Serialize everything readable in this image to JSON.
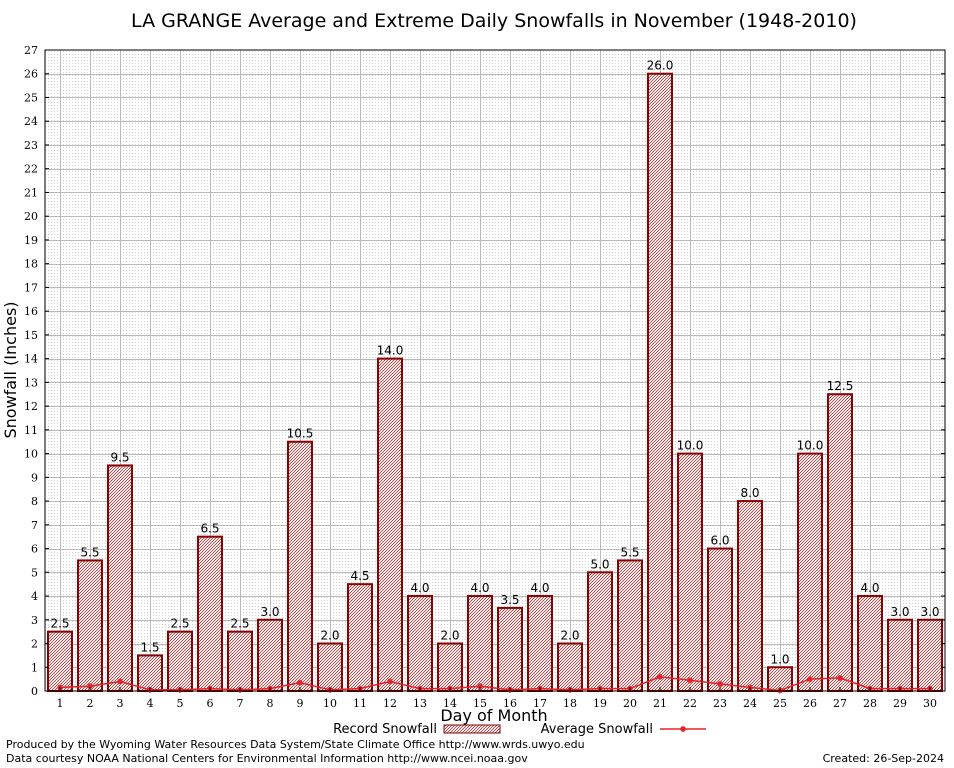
{
  "chart_data": {
    "type": "bar",
    "title": "LA GRANGE Average and Extreme Daily Snowfalls in November (1948-2010)",
    "xlabel": "Day of Month",
    "ylabel": "Snowfall (Inches)",
    "ylim": [
      0,
      27
    ],
    "yticks": [
      0,
      1,
      2,
      3,
      4,
      5,
      6,
      7,
      8,
      9,
      10,
      11,
      12,
      13,
      14,
      15,
      16,
      17,
      18,
      19,
      20,
      21,
      22,
      23,
      24,
      25,
      26,
      27
    ],
    "grid": true,
    "categories": [
      "1",
      "2",
      "3",
      "4",
      "5",
      "6",
      "7",
      "8",
      "9",
      "10",
      "11",
      "12",
      "13",
      "14",
      "15",
      "16",
      "17",
      "18",
      "19",
      "20",
      "21",
      "22",
      "23",
      "24",
      "25",
      "26",
      "27",
      "28",
      "29",
      "30"
    ],
    "series": [
      {
        "name": "Record Snowfall",
        "kind": "bar",
        "values": [
          2.5,
          5.5,
          9.5,
          1.5,
          2.5,
          6.5,
          2.5,
          3.0,
          10.5,
          2.0,
          4.5,
          14.0,
          4.0,
          2.0,
          4.0,
          3.5,
          4.0,
          2.0,
          5.0,
          5.5,
          26.0,
          10.0,
          6.0,
          8.0,
          1.0,
          10.0,
          12.5,
          4.0,
          3.0,
          3.0
        ],
        "labels": [
          "2.5",
          "5.5",
          "9.5",
          "1.5",
          "2.5",
          "6.5",
          "2.5",
          "3.0",
          "10.5",
          "2.0",
          "4.5",
          "14.0",
          "4.0",
          "2.0",
          "4.0",
          "3.5",
          "4.0",
          "2.0",
          "5.0",
          "5.5",
          "26.0",
          "10.0",
          "6.0",
          "8.0",
          "1.0",
          "10.0",
          "12.5",
          "4.0",
          "3.0",
          "3.0"
        ]
      },
      {
        "name": "Average Snowfall",
        "kind": "line",
        "values": [
          0.15,
          0.2,
          0.4,
          0.05,
          0.05,
          0.1,
          0.05,
          0.1,
          0.35,
          0.05,
          0.1,
          0.4,
          0.1,
          0.1,
          0.2,
          0.05,
          0.1,
          0.05,
          0.1,
          0.1,
          0.6,
          0.45,
          0.3,
          0.15,
          0.02,
          0.5,
          0.55,
          0.1,
          0.1,
          0.1
        ]
      }
    ],
    "legend_placement": "bottom-center",
    "colors": {
      "bar_edge": "#8b0000",
      "bar_fill_light": "#f3e6e6",
      "bar_fill_dark": "#a85555",
      "line": "#e8202a",
      "grid": "#b8b8b8"
    }
  },
  "footer": {
    "line1": "Produced by the Wyoming Water Resources Data System/State Climate Office http://www.wrds.uwyo.edu",
    "line2": "Data courtesy NOAA National Centers for Environmental Information http://www.ncei.noaa.gov",
    "created": "Created:  26-Sep-2024"
  }
}
